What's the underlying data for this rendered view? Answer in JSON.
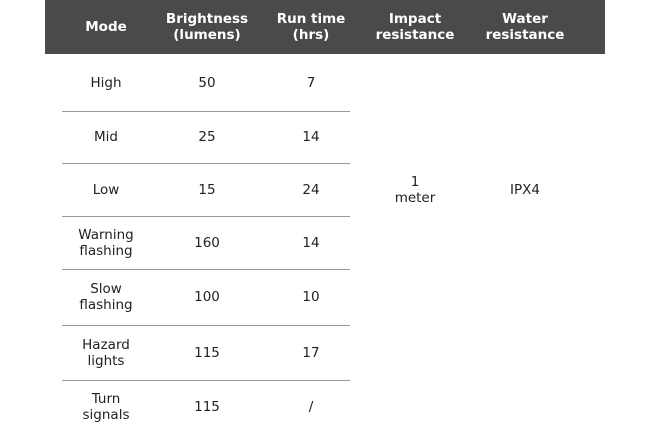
{
  "headers": [
    "Mode",
    "Brightness\n(lumens)",
    "Run time\n(hrs)",
    "Impact\nresistance",
    "Water\nresistance"
  ],
  "rows": [
    {
      "mode": "High",
      "brightness": "50",
      "runtime": "7"
    },
    {
      "mode": "Mid",
      "brightness": "25",
      "runtime": "14"
    },
    {
      "mode": "Low",
      "brightness": "15",
      "runtime": "24"
    },
    {
      "mode": "Warning\nflashing",
      "brightness": "160",
      "runtime": "14"
    },
    {
      "mode": "Slow\nflashing",
      "brightness": "100",
      "runtime": "10"
    },
    {
      "mode": "Hazard\nlights",
      "brightness": "115",
      "runtime": "17"
    },
    {
      "mode": "Turn\nsignals",
      "brightness": "115",
      "runtime": "/"
    }
  ],
  "shared": {
    "impact": "1\nmeter",
    "water": "IPX4"
  },
  "colors": {
    "header_bg": "#4a4a4a",
    "header_text": "#ffffff"
  }
}
